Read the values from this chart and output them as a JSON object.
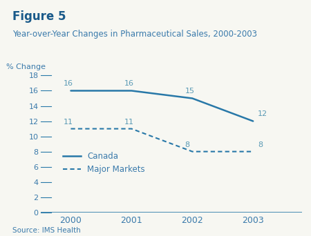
{
  "title_figure": "Figure 5",
  "title_sub": "Year-over-Year Changes in Pharmaceutical Sales, 2000-2003",
  "ylabel": "% Change",
  "source": "Source: IMS Health",
  "years": [
    2000,
    2001,
    2002,
    2003
  ],
  "canada": [
    16,
    16,
    15,
    12
  ],
  "major_markets": [
    11,
    11,
    8,
    8
  ],
  "canada_label": "Canada",
  "markets_label": "Major Markets",
  "line_color": "#2878a8",
  "ylim": [
    0,
    18
  ],
  "yticks": [
    0,
    2,
    4,
    6,
    8,
    10,
    12,
    14,
    16,
    18
  ],
  "bg_color": "#f7f7f2",
  "title_color": "#1a5a8a",
  "label_color": "#3a7aab",
  "annotation_color": "#5a9ab5",
  "top_bar_color": "#1a4a7a"
}
